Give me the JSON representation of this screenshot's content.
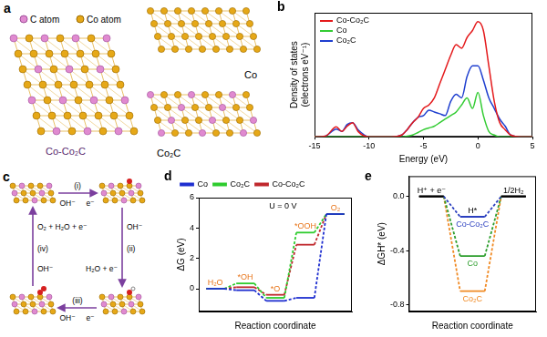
{
  "chart_data": [
    {
      "letter": "b",
      "type": "line",
      "x_label": "Energy (eV)",
      "y_label": "Density of states (electrons eV⁻¹)",
      "x": [
        -15,
        -14,
        -13,
        -12.5,
        -12,
        -11.5,
        -11,
        -10,
        -9,
        -8,
        -7,
        -6.5,
        -6,
        -5.5,
        -5,
        -4.5,
        -4,
        -3.5,
        -3,
        -2.5,
        -2,
        -1.5,
        -1,
        -0.5,
        0,
        0.5,
        1,
        1.5,
        2,
        2.5,
        3,
        4,
        5
      ],
      "series": [
        {
          "name": "Co-Co₂C",
          "color": "#e41a1c",
          "values": [
            0,
            2,
            28,
            15,
            30,
            40,
            15,
            0,
            0,
            0,
            5,
            20,
            40,
            55,
            80,
            90,
            110,
            150,
            190,
            230,
            260,
            250,
            280,
            300,
            325,
            300,
            200,
            100,
            40,
            20,
            5,
            0,
            0
          ]
        },
        {
          "name": "Co",
          "color": "#33cc33",
          "values": [
            0,
            0,
            0,
            0,
            0,
            0,
            0,
            0,
            0,
            0,
            0,
            2,
            5,
            12,
            20,
            25,
            30,
            40,
            50,
            60,
            70,
            90,
            110,
            80,
            125,
            60,
            15,
            5,
            0,
            0,
            0,
            0,
            0
          ]
        },
        {
          "name": "Co₂C",
          "color": "#1f3fcf",
          "values": [
            0,
            2,
            22,
            15,
            35,
            40,
            20,
            0,
            0,
            0,
            5,
            20,
            40,
            55,
            60,
            75,
            70,
            65,
            60,
            100,
            120,
            110,
            170,
            200,
            200,
            160,
            110,
            80,
            50,
            30,
            5,
            0,
            0
          ]
        }
      ],
      "xlim": [
        -15,
        5
      ],
      "xticks": [
        -15,
        -10,
        -5,
        0,
        5
      ],
      "ylim": [
        0,
        350
      ],
      "tick_labels": "x",
      "grid": false,
      "legend": "upper left"
    },
    {
      "letter": "d",
      "type": "step",
      "categories": [
        "H₂O",
        "*OH",
        "*O",
        "*OOH",
        "O₂"
      ],
      "x_label": "Reaction coordinate",
      "y_label": "ΔG (eV)",
      "annotations": [
        "U = 0 V"
      ],
      "series": [
        {
          "name": "Co",
          "color": "#1f2fd0",
          "values": [
            0,
            -0.1,
            -0.8,
            -0.6,
            4.92
          ]
        },
        {
          "name": "Co₂C",
          "color": "#2ecc2e",
          "values": [
            0,
            0.35,
            -0.6,
            3.7,
            4.92
          ]
        },
        {
          "name": "Co-Co₂C",
          "color": "#c0282d",
          "values": [
            0,
            0.1,
            -0.4,
            2.9,
            4.92
          ]
        }
      ],
      "ylim": [
        -1.5,
        6
      ],
      "yticks": [
        0,
        2,
        4,
        6
      ],
      "tick_labels": "y",
      "grid": false,
      "legend": "top"
    },
    {
      "letter": "e",
      "type": "step",
      "categories": [
        "H⁺ + e⁻",
        "H*",
        "1/2H₂"
      ],
      "x_label": "Reaction coordinate",
      "y_label": "ΔGH* (eV)",
      "series": [
        {
          "name": "Co-Co₂C",
          "color": "#2b3fbf",
          "values": [
            0,
            -0.15,
            0
          ]
        },
        {
          "name": "Co",
          "color": "#2e9e2e",
          "values": [
            0,
            -0.44,
            0
          ]
        },
        {
          "name": "Co₂C",
          "color": "#f08a24",
          "values": [
            0,
            -0.7,
            0
          ]
        }
      ],
      "ylim": [
        -0.85,
        0.15
      ],
      "yticks": [
        {
          "value": 0,
          "label": "0.0"
        },
        -0.4,
        -0.8
      ],
      "tick_labels": "y",
      "grid": false
    }
  ],
  "diagrams": {
    "a": {
      "letter": "a",
      "atoms": [
        "C atom",
        "Co atom"
      ],
      "structures": [
        "Co-Co₂C",
        "Co",
        "Co₂C"
      ]
    },
    "c": {
      "letter": "c",
      "steps": [
        {
          "label": "(i)",
          "in": "OH⁻",
          "out": "e⁻"
        },
        {
          "label": "(ii)",
          "in": "OH⁻",
          "out": "H₂O + e⁻"
        },
        {
          "label": "(iii)",
          "in": "OH⁻",
          "out": "e⁻"
        },
        {
          "label": "(iv)",
          "in": "OH⁻",
          "out": "O₂ + H₂O + e⁻"
        }
      ]
    }
  }
}
